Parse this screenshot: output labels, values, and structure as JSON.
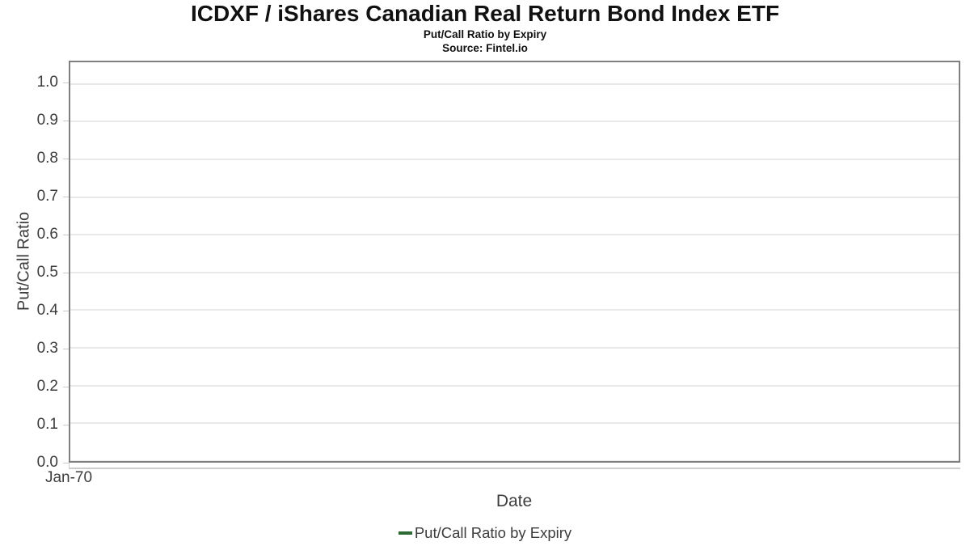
{
  "header": {
    "title": "ICDXF / iShares Canadian Real Return Bond Index ETF",
    "subtitle": "Put/Call Ratio by Expiry",
    "source": "Source: Fintel.io"
  },
  "chart_data": {
    "type": "line",
    "title": "ICDXF / iShares Canadian Real Return Bond Index ETF",
    "subtitle": "Put/Call Ratio by Expiry",
    "source": "Source: Fintel.io",
    "xlabel": "Date",
    "ylabel": "Put/Call Ratio",
    "xticks": [
      "Jan-70"
    ],
    "yticks": [
      "0.0",
      "0.1",
      "0.2",
      "0.3",
      "0.4",
      "0.5",
      "0.6",
      "0.7",
      "0.8",
      "0.9",
      "1.0"
    ],
    "ylim": [
      0,
      1.057
    ],
    "grid": "horizontal-only",
    "legend_position": "bottom",
    "series": [
      {
        "name": "Put/Call Ratio by Expiry",
        "color": "#2d6a33",
        "x": [],
        "values": []
      }
    ]
  },
  "legend": {
    "label": "Put/Call Ratio by Expiry",
    "marker_color": "#2d6a33"
  },
  "colors": {
    "accent": "#2d6a33",
    "plot_border": "#7f7f7f",
    "gridline": "#e9e9e9",
    "tick_mark": "#cccccc",
    "axis_text": "#3d3d3d",
    "title_text": "#111111"
  }
}
